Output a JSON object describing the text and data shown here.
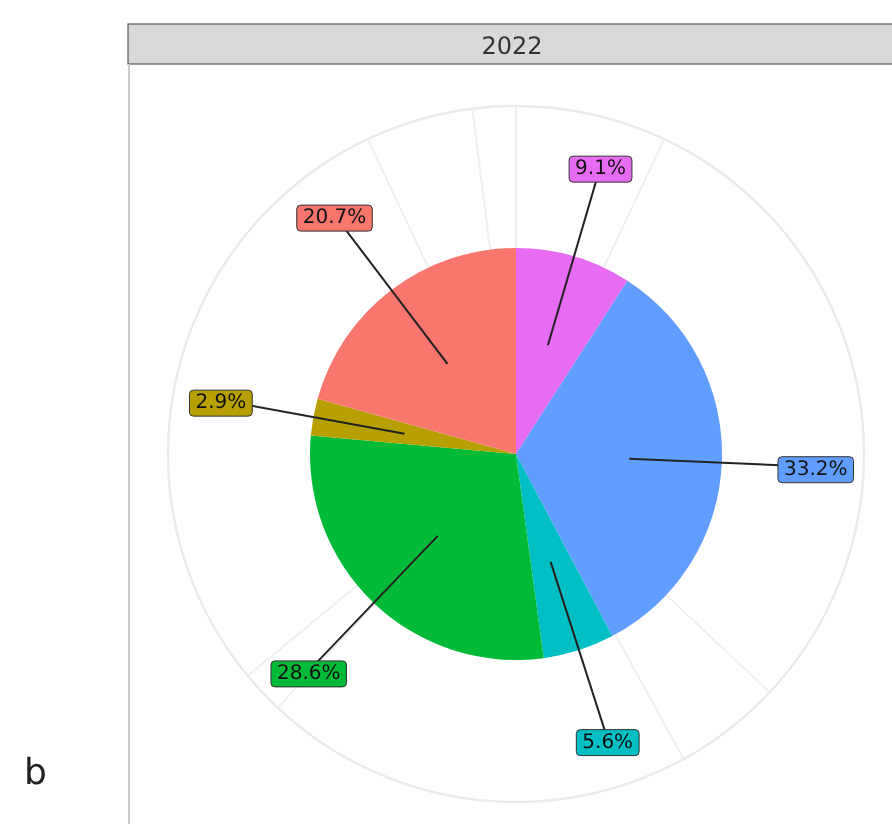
{
  "chart_data": {
    "type": "pie",
    "title": "2022",
    "categories": [
      null,
      null,
      null,
      null,
      null,
      null
    ],
    "values": [
      9.1,
      33.2,
      5.6,
      28.6,
      2.9,
      20.7
    ],
    "colors": [
      "#e76bf3",
      "#619cff",
      "#00bfc4",
      "#00ba38",
      "#b79f00",
      "#f8766d"
    ],
    "value_labels": [
      "9.1%",
      "33.2%",
      "5.6%",
      "28.6%",
      "2.9%",
      "20.7%"
    ],
    "grid": true,
    "annotations": [
      "b"
    ]
  }
}
